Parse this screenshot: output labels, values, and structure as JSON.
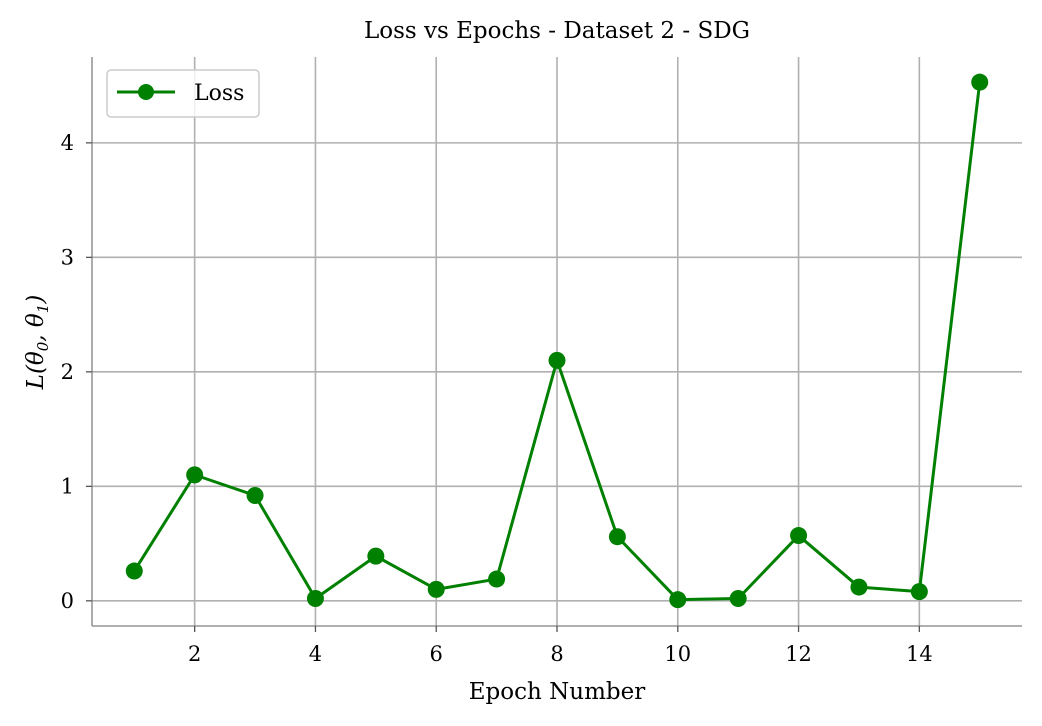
{
  "chart_data": {
    "type": "line",
    "title": "Loss vs Epochs - Dataset 2 - SDG",
    "xlabel": "Epoch Number",
    "ylabel_main": "L(θ",
    "ylabel_sub0": "0",
    "ylabel_mid": ", θ",
    "ylabel_sub1": "1",
    "ylabel_end": ")",
    "xlim": [
      0.3,
      15.7
    ],
    "ylim": [
      -0.22,
      4.75
    ],
    "xticks": [
      2,
      4,
      6,
      8,
      10,
      12,
      14
    ],
    "yticks": [
      0,
      1,
      2,
      3,
      4
    ],
    "grid": true,
    "legend_position": "top-left",
    "series": [
      {
        "name": "Loss",
        "color": "#008000",
        "marker": "circle",
        "x": [
          1,
          2,
          3,
          4,
          5,
          6,
          7,
          8,
          9,
          10,
          11,
          12,
          13,
          14,
          15
        ],
        "y": [
          0.26,
          1.1,
          0.92,
          0.02,
          0.39,
          0.1,
          0.19,
          2.1,
          0.56,
          0.01,
          0.02,
          0.57,
          0.12,
          0.08,
          4.53
        ]
      }
    ]
  }
}
